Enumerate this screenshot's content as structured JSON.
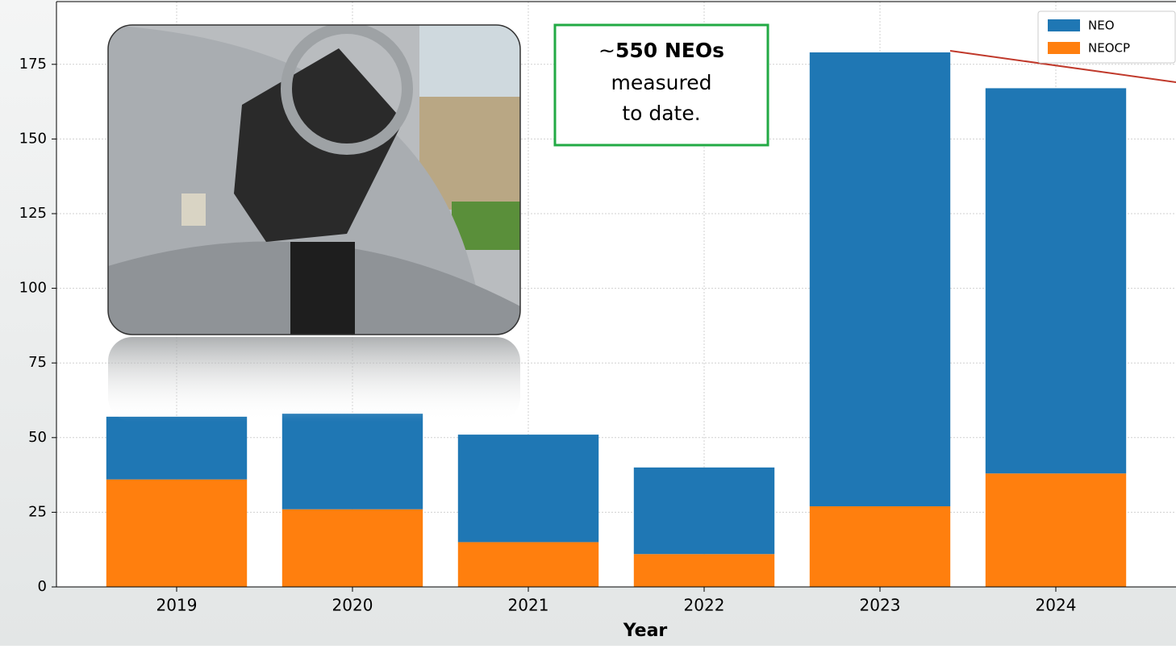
{
  "chart_data": {
    "type": "bar",
    "stacked": true,
    "categories": [
      "2019",
      "2020",
      "2021",
      "2022",
      "2023",
      "2024"
    ],
    "series": [
      {
        "name": "NEO",
        "color": "#1f77b4",
        "values": [
          21,
          32,
          36,
          29,
          152,
          129
        ]
      },
      {
        "name": "NEOCP",
        "color": "#ff7f0e",
        "values": [
          36,
          26,
          15,
          11,
          27,
          38
        ]
      }
    ],
    "xlabel": "Year",
    "ylim": [
      0,
      196
    ],
    "yticks": [
      0,
      25,
      50,
      75,
      100,
      125,
      150,
      175
    ],
    "grid": true,
    "legend": "upper right",
    "annotation": [
      "~",
      "550 NEOs",
      "measured",
      "to date."
    ]
  }
}
